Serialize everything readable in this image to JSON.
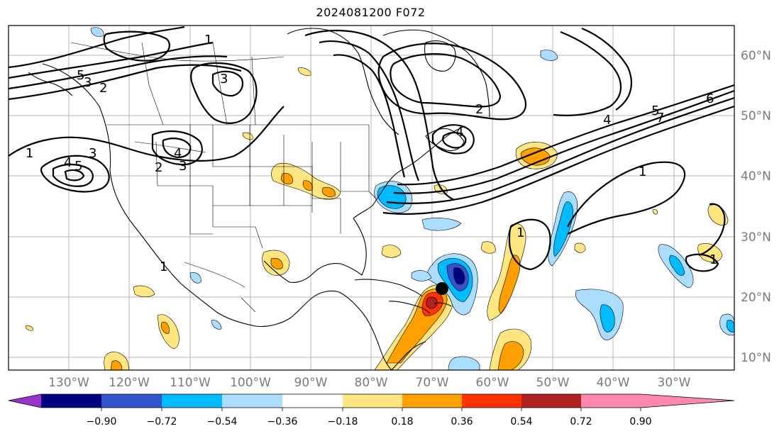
{
  "title": "2024081200 F072",
  "lat_labels": [
    "60°N",
    "50°N",
    "40°N",
    "30°N",
    "20°N",
    "10°N"
  ],
  "lon_labels": [
    "130°W",
    "120°W",
    "110°W",
    "100°W",
    "90°W",
    "80°W",
    "70°W",
    "60°W",
    "50°W",
    "40°W",
    "30°W"
  ],
  "colorbar": {
    "ticks": [
      "−0.90",
      "−0.72",
      "−0.54",
      "−0.36",
      "−0.18",
      "0.18",
      "0.36",
      "0.54",
      "0.72",
      "0.90"
    ],
    "colors": [
      "#9933cc",
      "#000080",
      "#3355cc",
      "#00bbff",
      "#aaddff",
      "#ffffff",
      "#ffe680",
      "#ffa000",
      "#ff3300",
      "#b22222",
      "#ff88b0"
    ]
  },
  "contour_labels": [
    "1",
    "2",
    "3",
    "4",
    "5",
    "6",
    "7"
  ],
  "marker": "storm-center-dot"
}
